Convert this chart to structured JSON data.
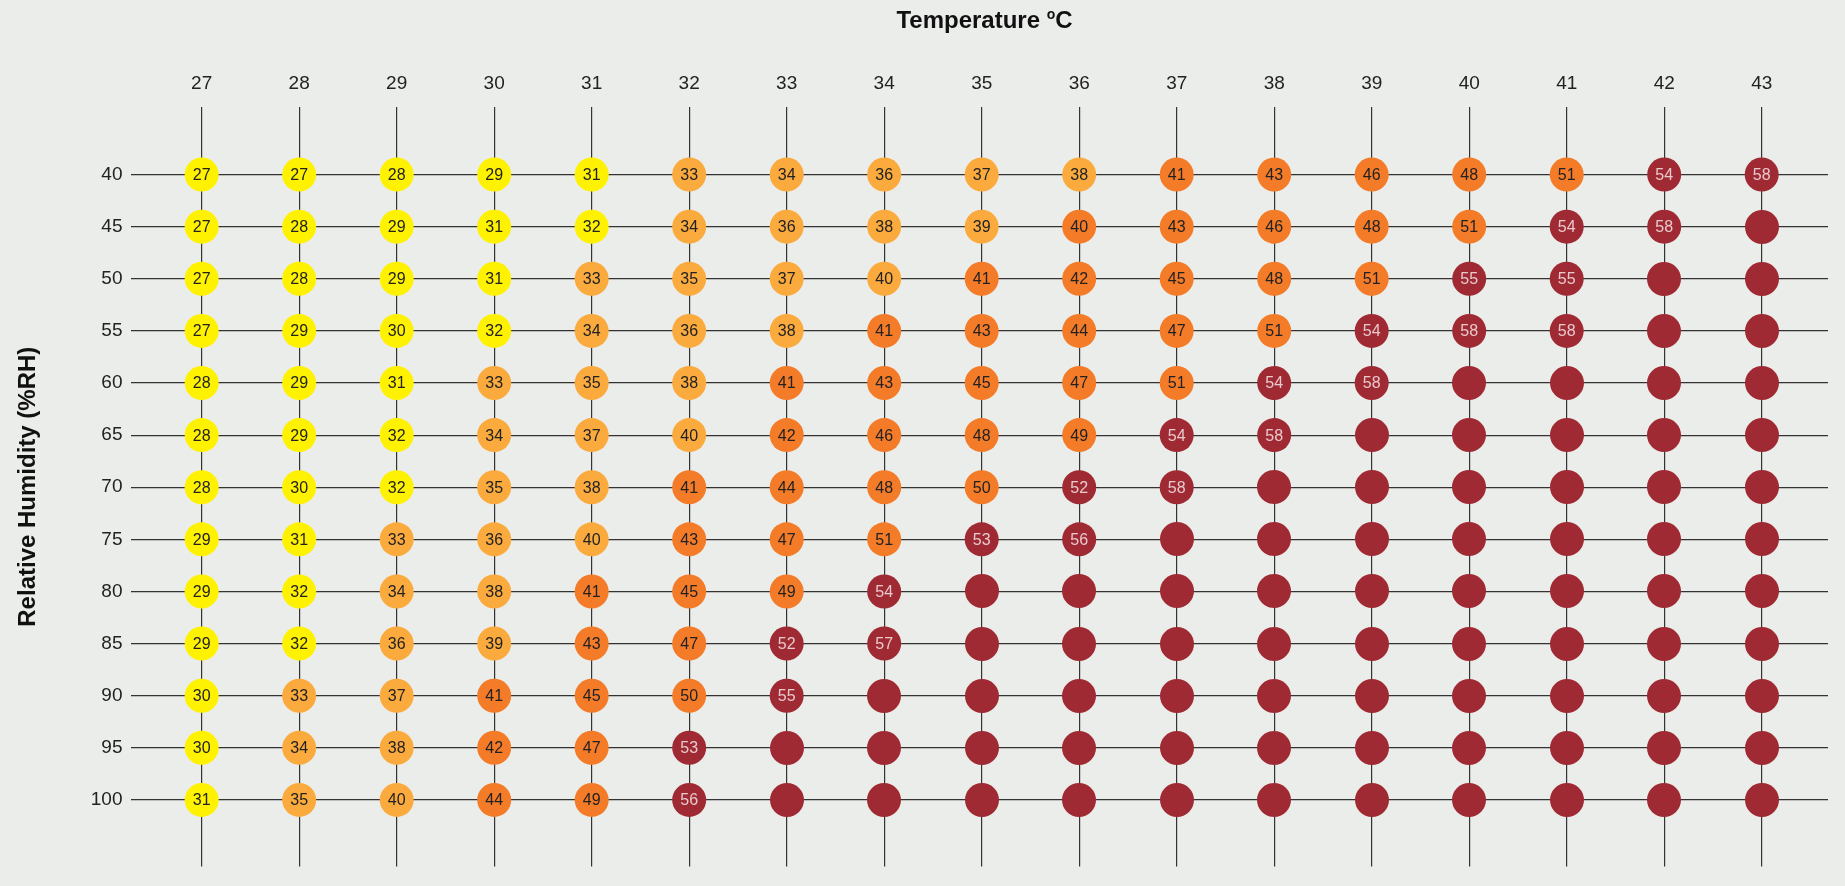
{
  "chart_data": {
    "type": "heatmap",
    "xlabel": "Temperature $^{o}$C",
    "ylabel": "Relative Humidity (%RH)",
    "grid": true,
    "data_labels": true,
    "categories": [
      "27",
      "28",
      "29",
      "30",
      "31",
      "32",
      "33",
      "34",
      "35",
      "36",
      "37",
      "38",
      "39",
      "40",
      "41",
      "42",
      "43"
    ],
    "y_categories": [
      "40",
      "45",
      "50",
      "55",
      "60",
      "65",
      "70",
      "75",
      "80",
      "85",
      "90",
      "95",
      "100"
    ],
    "cells": [
      [
        27,
        27,
        28,
        29,
        31,
        33,
        34,
        36,
        37,
        38,
        41,
        43,
        46,
        48,
        51,
        54,
        58
      ],
      [
        27,
        28,
        29,
        31,
        32,
        34,
        36,
        38,
        39,
        40,
        43,
        46,
        48,
        51,
        54,
        58,
        null
      ],
      [
        27,
        28,
        29,
        31,
        33,
        35,
        37,
        40,
        41,
        42,
        45,
        48,
        51,
        55,
        55,
        null,
        null
      ],
      [
        27,
        29,
        30,
        32,
        34,
        36,
        38,
        41,
        43,
        44,
        47,
        51,
        54,
        58,
        58,
        null,
        null
      ],
      [
        28,
        29,
        31,
        33,
        35,
        38,
        41,
        43,
        45,
        47,
        51,
        54,
        58,
        null,
        null,
        null,
        null
      ],
      [
        28,
        29,
        32,
        34,
        37,
        40,
        42,
        46,
        48,
        49,
        54,
        58,
        null,
        null,
        null,
        null,
        null
      ],
      [
        28,
        30,
        32,
        35,
        38,
        41,
        44,
        48,
        50,
        52,
        58,
        null,
        null,
        null,
        null,
        null,
        null
      ],
      [
        29,
        31,
        33,
        36,
        40,
        43,
        47,
        51,
        53,
        56,
        null,
        null,
        null,
        null,
        null,
        null,
        null
      ],
      [
        29,
        32,
        34,
        38,
        41,
        45,
        49,
        54,
        null,
        null,
        null,
        null,
        null,
        null,
        null,
        null,
        null
      ],
      [
        29,
        32,
        36,
        39,
        43,
        47,
        52,
        57,
        null,
        null,
        null,
        null,
        null,
        null,
        null,
        null,
        null
      ],
      [
        30,
        33,
        37,
        41,
        45,
        50,
        55,
        null,
        null,
        null,
        null,
        null,
        null,
        null,
        null,
        null,
        null
      ],
      [
        30,
        34,
        38,
        42,
        47,
        53,
        null,
        null,
        null,
        null,
        null,
        null,
        null,
        null,
        null,
        null,
        null
      ],
      [
        31,
        35,
        40,
        44,
        49,
        56,
        null,
        null,
        null,
        null,
        null,
        null,
        null,
        null,
        null,
        null,
        null
      ]
    ],
    "colors": [
      [
        "#fff200",
        "#fff200",
        "#fff200",
        "#fff200",
        "#fff200",
        "#fbab3d",
        "#fbab3d",
        "#fbab3d",
        "#fbab3d",
        "#fbab3d",
        "#f47b28",
        "#f47b28",
        "#f47b28",
        "#f47b28",
        "#f47b28",
        "#a02a33",
        "#a02a33"
      ],
      [
        "#fff200",
        "#fff200",
        "#fff200",
        "#fff200",
        "#fff200",
        "#fbab3d",
        "#fbab3d",
        "#fbab3d",
        "#fbab3d",
        "#f47b28",
        "#f47b28",
        "#f47b28",
        "#f47b28",
        "#f47b28",
        "#a02a33",
        "#a02a33",
        "#a02a33"
      ],
      [
        "#fff200",
        "#fff200",
        "#fff200",
        "#fff200",
        "#fbab3d",
        "#fbab3d",
        "#fbab3d",
        "#fbab3d",
        "#f47b28",
        "#f47b28",
        "#f47b28",
        "#f47b28",
        "#f47b28",
        "#a02a33",
        "#a02a33",
        "#a02a33",
        "#a02a33"
      ],
      [
        "#fff200",
        "#fff200",
        "#fff200",
        "#fff200",
        "#fbab3d",
        "#fbab3d",
        "#fbab3d",
        "#f47b28",
        "#f47b28",
        "#f47b28",
        "#f47b28",
        "#f47b28",
        "#a02a33",
        "#a02a33",
        "#a02a33",
        "#a02a33",
        "#a02a33"
      ],
      [
        "#fff200",
        "#fff200",
        "#fff200",
        "#fbab3d",
        "#fbab3d",
        "#fbab3d",
        "#f47b28",
        "#f47b28",
        "#f47b28",
        "#f47b28",
        "#f47b28",
        "#a02a33",
        "#a02a33",
        "#a02a33",
        "#a02a33",
        "#a02a33",
        "#a02a33"
      ],
      [
        "#fff200",
        "#fff200",
        "#fff200",
        "#fbab3d",
        "#fbab3d",
        "#fbab3d",
        "#f47b28",
        "#f47b28",
        "#f47b28",
        "#f47b28",
        "#a02a33",
        "#a02a33",
        "#a02a33",
        "#a02a33",
        "#a02a33",
        "#a02a33",
        "#a02a33"
      ],
      [
        "#fff200",
        "#fff200",
        "#fff200",
        "#fbab3d",
        "#fbab3d",
        "#f47b28",
        "#f47b28",
        "#f47b28",
        "#f47b28",
        "#a02a33",
        "#a02a33",
        "#a02a33",
        "#a02a33",
        "#a02a33",
        "#a02a33",
        "#a02a33",
        "#a02a33"
      ],
      [
        "#fff200",
        "#fff200",
        "#fbab3d",
        "#fbab3d",
        "#fbab3d",
        "#f47b28",
        "#f47b28",
        "#f47b28",
        "#a02a33",
        "#a02a33",
        "#a02a33",
        "#a02a33",
        "#a02a33",
        "#a02a33",
        "#a02a33",
        "#a02a33",
        "#a02a33"
      ],
      [
        "#fff200",
        "#fff200",
        "#fbab3d",
        "#fbab3d",
        "#f47b28",
        "#f47b28",
        "#f47b28",
        "#a02a33",
        "#a02a33",
        "#a02a33",
        "#a02a33",
        "#a02a33",
        "#a02a33",
        "#a02a33",
        "#a02a33",
        "#a02a33",
        "#a02a33"
      ],
      [
        "#fff200",
        "#fff200",
        "#fbab3d",
        "#fbab3d",
        "#f47b28",
        "#f47b28",
        "#a02a33",
        "#a02a33",
        "#a02a33",
        "#a02a33",
        "#a02a33",
        "#a02a33",
        "#a02a33",
        "#a02a33",
        "#a02a33",
        "#a02a33",
        "#a02a33"
      ],
      [
        "#fff200",
        "#fbab3d",
        "#fbab3d",
        "#f47b28",
        "#f47b28",
        "#f47b28",
        "#a02a33",
        "#a02a33",
        "#a02a33",
        "#a02a33",
        "#a02a33",
        "#a02a33",
        "#a02a33",
        "#a02a33",
        "#a02a33",
        "#a02a33",
        "#a02a33"
      ],
      [
        "#fff200",
        "#fbab3d",
        "#fbab3d",
        "#f47b28",
        "#f47b28",
        "#a02a33",
        "#a02a33",
        "#a02a33",
        "#a02a33",
        "#a02a33",
        "#a02a33",
        "#a02a33",
        "#a02a33",
        "#a02a33",
        "#a02a33",
        "#a02a33",
        "#a02a33"
      ],
      [
        "#fff200",
        "#fbab3d",
        "#fbab3d",
        "#f47b28",
        "#f47b28",
        "#a02a33",
        "#a02a33",
        "#a02a33",
        "#a02a33",
        "#a02a33",
        "#a02a33",
        "#a02a33",
        "#a02a33",
        "#a02a33",
        "#a02a33",
        "#a02a33",
        "#a02a33"
      ]
    ]
  }
}
